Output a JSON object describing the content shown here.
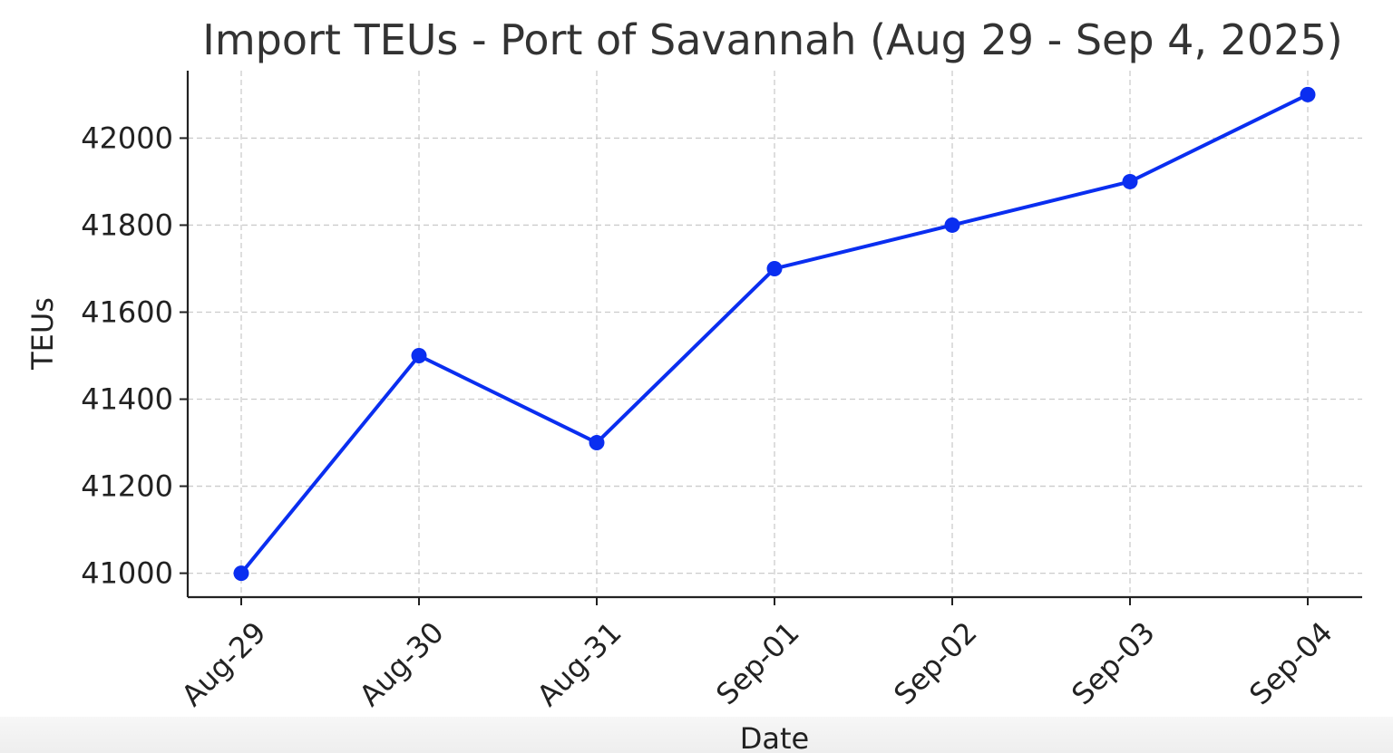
{
  "chart_data": {
    "type": "line",
    "title": "Import TEUs - Port of Savannah (Aug 29 - Sep 4, 2025)",
    "xlabel": "Date",
    "ylabel": "TEUs",
    "categories": [
      "Aug-29",
      "Aug-30",
      "Aug-31",
      "Sep-01",
      "Sep-02",
      "Sep-03",
      "Sep-04"
    ],
    "series": [
      {
        "values": [
          41000,
          41500,
          41300,
          41700,
          41800,
          41900,
          42100
        ]
      }
    ],
    "yticks": [
      41000,
      41200,
      41400,
      41600,
      41800,
      42000
    ],
    "ylim": [
      40945,
      42155
    ],
    "grid": true,
    "marker": "circle",
    "line_color": "#0a2ef0"
  }
}
